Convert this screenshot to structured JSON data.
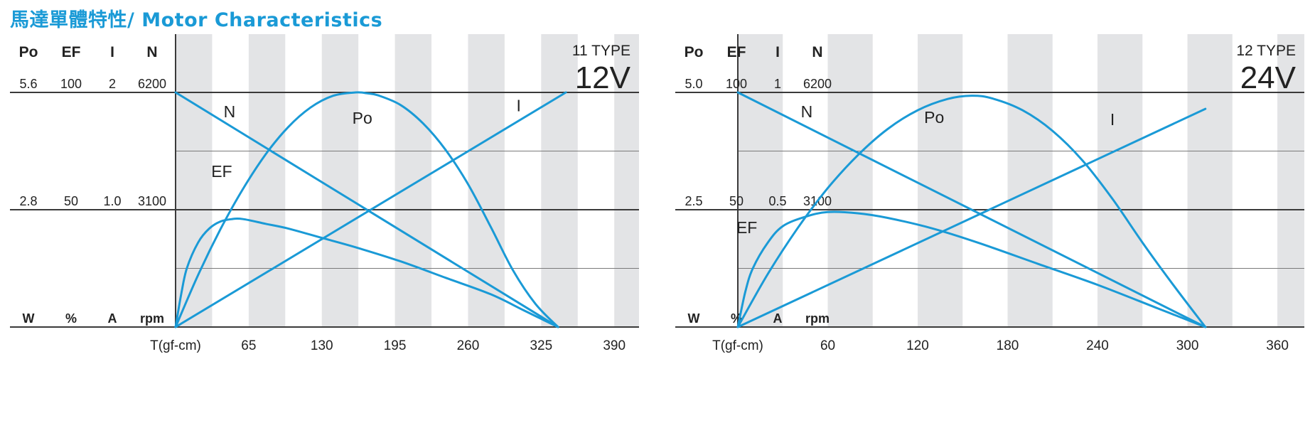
{
  "page": {
    "title": "馬達單體特性/ Motor Characteristics"
  },
  "colors": {
    "curve": "#1a9ad6",
    "stripe": "#e3e4e6",
    "axis": "#3a3a3a",
    "gridline": "#7a7a7a",
    "text": "#222222"
  },
  "chart_data": [
    {
      "type": "line",
      "type_label": "11 TYPE",
      "voltage": "12V",
      "header_labels": [
        "Po",
        "EF",
        "I",
        "N"
      ],
      "unit_labels": [
        "W",
        "%",
        "A",
        "rpm"
      ],
      "scale_top": [
        "5.6",
        "100",
        "2",
        "6200"
      ],
      "scale_mid": [
        "2.8",
        "50",
        "1.0",
        "3100"
      ],
      "xlabel": "T(gf-cm)",
      "x_ticks": [
        65,
        130,
        195,
        260,
        325,
        390
      ],
      "xlim": [
        0,
        412
      ],
      "stall_torque": 340,
      "axis_top": {
        "Po": 5.6,
        "EF": 100,
        "I": 2,
        "N": 6200
      },
      "series": [
        {
          "name": "N",
          "points": [
            [
              0,
              6200
            ],
            [
              340,
              0
            ]
          ]
        },
        {
          "name": "I",
          "points": [
            [
              0,
              0
            ],
            [
              347,
              2
            ]
          ]
        },
        {
          "name": "Po",
          "points": [
            [
              0,
              0
            ],
            [
              20,
              1.24
            ],
            [
              40,
              2.34
            ],
            [
              60,
              3.3
            ],
            [
              80,
              4.12
            ],
            [
              100,
              4.77
            ],
            [
              120,
              5.24
            ],
            [
              140,
              5.52
            ],
            [
              160,
              5.6
            ],
            [
              170,
              5.58
            ],
            [
              180,
              5.53
            ],
            [
              200,
              5.3
            ],
            [
              220,
              4.86
            ],
            [
              240,
              4.23
            ],
            [
              260,
              3.41
            ],
            [
              280,
              2.4
            ],
            [
              300,
              1.35
            ],
            [
              320,
              0.55
            ],
            [
              340,
              0
            ]
          ]
        },
        {
          "name": "EF",
          "points": [
            [
              0,
              0
            ],
            [
              5,
              14
            ],
            [
              10,
              25
            ],
            [
              20,
              36
            ],
            [
              30,
              42
            ],
            [
              40,
              45
            ],
            [
              50,
              46
            ],
            [
              60,
              46
            ],
            [
              80,
              44
            ],
            [
              100,
              42
            ],
            [
              130,
              38
            ],
            [
              160,
              34
            ],
            [
              200,
              28
            ],
            [
              240,
              21
            ],
            [
              280,
              14
            ],
            [
              310,
              7
            ],
            [
              340,
              0
            ]
          ]
        }
      ],
      "series_labels": [
        {
          "name": "N",
          "x": 48,
          "y": 5540
        },
        {
          "name": "I",
          "x": 305,
          "y": 1.84
        },
        {
          "name": "Po",
          "x": 166,
          "y": 4.85
        },
        {
          "name": "EF",
          "x": 41,
          "y": 64
        }
      ]
    },
    {
      "type": "line",
      "type_label": "12 TYPE",
      "voltage": "24V",
      "header_labels": [
        "Po",
        "EF",
        "I",
        "N"
      ],
      "unit_labels": [
        "W",
        "%",
        "A",
        "rpm"
      ],
      "scale_top": [
        "5.0",
        "100",
        "1",
        "6200"
      ],
      "scale_mid": [
        "2.5",
        "50",
        "0.5",
        "3100"
      ],
      "xlabel": "T(gf-cm)",
      "x_ticks": [
        60,
        120,
        180,
        240,
        300,
        360
      ],
      "xlim": [
        0,
        378
      ],
      "stall_torque": 312,
      "axis_top": {
        "Po": 5.0,
        "EF": 100,
        "I": 1,
        "N": 6200
      },
      "series": [
        {
          "name": "N",
          "points": [
            [
              0,
              6200
            ],
            [
              312,
              0
            ]
          ]
        },
        {
          "name": "I",
          "points": [
            [
              0,
              0
            ],
            [
              312,
              0.93
            ]
          ]
        },
        {
          "name": "Po",
          "points": [
            [
              0,
              0
            ],
            [
              20,
              1.13
            ],
            [
              40,
              2.11
            ],
            [
              60,
              2.96
            ],
            [
              80,
              3.66
            ],
            [
              100,
              4.22
            ],
            [
              120,
              4.62
            ],
            [
              140,
              4.86
            ],
            [
              156,
              4.93
            ],
            [
              170,
              4.87
            ],
            [
              190,
              4.62
            ],
            [
              210,
              4.18
            ],
            [
              230,
              3.55
            ],
            [
              250,
              2.73
            ],
            [
              270,
              1.8
            ],
            [
              290,
              0.92
            ],
            [
              312,
              0
            ]
          ]
        },
        {
          "name": "EF",
          "points": [
            [
              0,
              0
            ],
            [
              5,
              15
            ],
            [
              10,
              25
            ],
            [
              20,
              36
            ],
            [
              30,
              43
            ],
            [
              45,
              47
            ],
            [
              60,
              49
            ],
            [
              80,
              48.5
            ],
            [
              100,
              46.5
            ],
            [
              130,
              42
            ],
            [
              160,
              36
            ],
            [
              200,
              27
            ],
            [
              240,
              18
            ],
            [
              280,
              8
            ],
            [
              312,
              0
            ]
          ]
        }
      ],
      "series_labels": [
        {
          "name": "N",
          "x": 46,
          "y": 5540
        },
        {
          "name": "I",
          "x": 250,
          "y": 0.86
        },
        {
          "name": "Po",
          "x": 131,
          "y": 4.35
        },
        {
          "name": "EF",
          "x": 6,
          "y": 40
        }
      ]
    }
  ]
}
